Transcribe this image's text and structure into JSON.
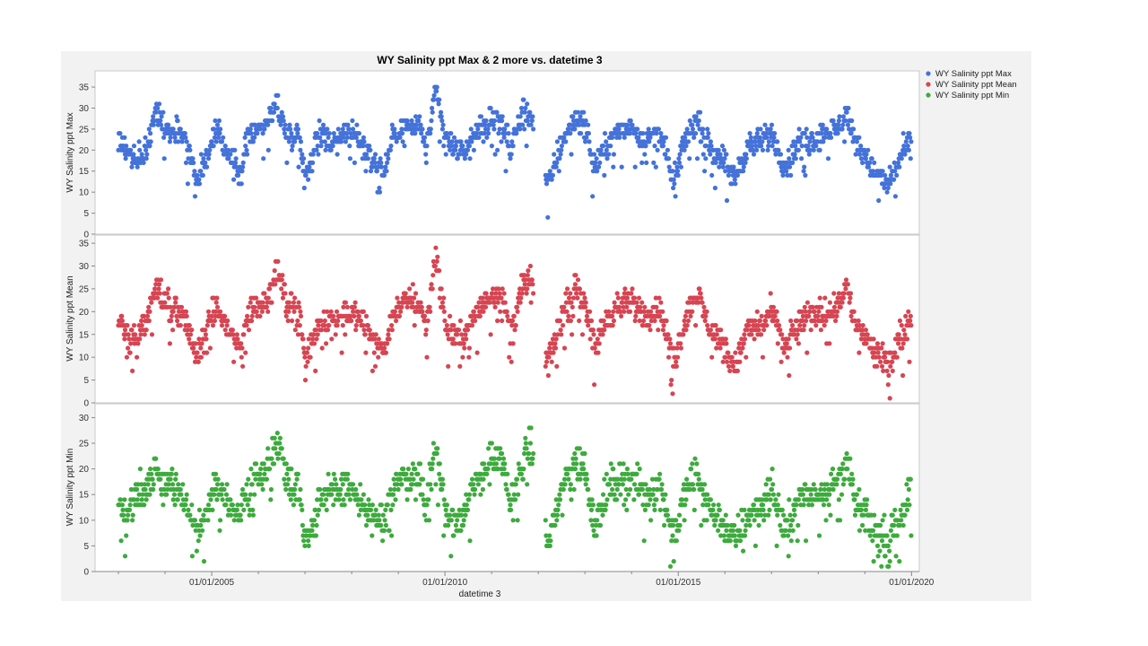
{
  "chart_data": {
    "type": "scatter",
    "title": "WY Salinity ppt Max & 2 more vs. datetime 3",
    "xlabel": "datetime 3",
    "x_ticks": [
      "01/01/2005",
      "01/01/2010",
      "01/01/2015",
      "01/01/2020"
    ],
    "xlim": [
      "2002-07-01",
      "2020-03-01"
    ],
    "legend_position": "right",
    "grid": false,
    "series": [
      {
        "name": "WY Salinity ppt Max",
        "ylabel": "WY Salinity ppt Max",
        "color": "#4472D9",
        "ylim": [
          0,
          38
        ],
        "yticks": [
          0,
          5,
          10,
          15,
          20,
          25,
          30,
          35
        ],
        "anchors": [
          [
            2003.0,
            23
          ],
          [
            2003.2,
            20
          ],
          [
            2003.4,
            17
          ],
          [
            2003.6,
            20
          ],
          [
            2003.8,
            29
          ],
          [
            2004.1,
            25
          ],
          [
            2004.4,
            24
          ],
          [
            2004.7,
            13
          ],
          [
            2004.9,
            19
          ],
          [
            2005.1,
            24
          ],
          [
            2005.3,
            21
          ],
          [
            2005.6,
            14
          ],
          [
            2005.8,
            24
          ],
          [
            2006.2,
            27
          ],
          [
            2006.4,
            31
          ],
          [
            2006.6,
            24
          ],
          [
            2006.9,
            23
          ],
          [
            2007.0,
            13
          ],
          [
            2007.3,
            24
          ],
          [
            2007.6,
            22
          ],
          [
            2007.9,
            25
          ],
          [
            2008.2,
            22
          ],
          [
            2008.5,
            17
          ],
          [
            2008.7,
            15
          ],
          [
            2008.9,
            24
          ],
          [
            2009.3,
            26
          ],
          [
            2009.5,
            25
          ],
          [
            2009.6,
            20
          ],
          [
            2009.8,
            34
          ],
          [
            2010.0,
            23
          ],
          [
            2010.2,
            21
          ],
          [
            2010.4,
            19
          ],
          [
            2010.6,
            23
          ],
          [
            2010.8,
            26
          ],
          [
            2011.0,
            26
          ],
          [
            2011.2,
            27
          ],
          [
            2011.4,
            20
          ],
          [
            2011.7,
            30
          ],
          [
            2011.85,
            28
          ],
          [
            2012.2,
            11
          ],
          [
            2012.5,
            22
          ],
          [
            2012.8,
            28
          ],
          [
            2013.0,
            26
          ],
          [
            2013.2,
            16
          ],
          [
            2013.5,
            22
          ],
          [
            2013.7,
            24
          ],
          [
            2014.0,
            26
          ],
          [
            2014.3,
            22
          ],
          [
            2014.6,
            25
          ],
          [
            2014.9,
            12
          ],
          [
            2015.2,
            24
          ],
          [
            2015.4,
            27
          ],
          [
            2015.7,
            20
          ],
          [
            2015.9,
            19
          ],
          [
            2016.2,
            13
          ],
          [
            2016.5,
            21
          ],
          [
            2016.8,
            22
          ],
          [
            2017.0,
            24
          ],
          [
            2017.3,
            16
          ],
          [
            2017.6,
            22
          ],
          [
            2017.8,
            22
          ],
          [
            2018.1,
            24
          ],
          [
            2018.4,
            25
          ],
          [
            2018.6,
            29
          ],
          [
            2018.8,
            22
          ],
          [
            2019.0,
            19
          ],
          [
            2019.3,
            13
          ],
          [
            2019.5,
            12
          ],
          [
            2019.8,
            19
          ],
          [
            2020.0,
            22
          ]
        ]
      },
      {
        "name": "WY Salinity ppt Mean",
        "ylabel": "WY Salinity ppt Mean",
        "color": "#D64552",
        "ylim": [
          0,
          36
        ],
        "yticks": [
          0,
          5,
          10,
          15,
          20,
          25,
          30,
          35
        ],
        "anchors": [
          [
            2003.0,
            18
          ],
          [
            2003.2,
            14
          ],
          [
            2003.4,
            14
          ],
          [
            2003.6,
            18
          ],
          [
            2003.8,
            25
          ],
          [
            2004.1,
            21
          ],
          [
            2004.4,
            19
          ],
          [
            2004.7,
            10
          ],
          [
            2004.9,
            16
          ],
          [
            2005.1,
            21
          ],
          [
            2005.3,
            17
          ],
          [
            2005.6,
            12
          ],
          [
            2005.8,
            20
          ],
          [
            2006.2,
            23
          ],
          [
            2006.4,
            29
          ],
          [
            2006.6,
            22
          ],
          [
            2006.9,
            20
          ],
          [
            2007.0,
            8
          ],
          [
            2007.3,
            18
          ],
          [
            2007.6,
            18
          ],
          [
            2007.9,
            20
          ],
          [
            2008.2,
            18
          ],
          [
            2008.5,
            14
          ],
          [
            2008.7,
            11
          ],
          [
            2008.9,
            20
          ],
          [
            2009.3,
            23
          ],
          [
            2009.5,
            21
          ],
          [
            2009.6,
            16
          ],
          [
            2009.8,
            33
          ],
          [
            2010.0,
            17
          ],
          [
            2010.2,
            15
          ],
          [
            2010.4,
            14
          ],
          [
            2010.6,
            18
          ],
          [
            2010.8,
            22
          ],
          [
            2011.0,
            24
          ],
          [
            2011.2,
            24
          ],
          [
            2011.4,
            16
          ],
          [
            2011.7,
            26
          ],
          [
            2011.85,
            27
          ],
          [
            2012.2,
            8
          ],
          [
            2012.5,
            19
          ],
          [
            2012.8,
            25
          ],
          [
            2013.0,
            23
          ],
          [
            2013.2,
            12
          ],
          [
            2013.5,
            19
          ],
          [
            2013.7,
            21
          ],
          [
            2014.0,
            22
          ],
          [
            2014.3,
            19
          ],
          [
            2014.6,
            21
          ],
          [
            2014.9,
            9
          ],
          [
            2015.2,
            20
          ],
          [
            2015.4,
            24
          ],
          [
            2015.7,
            16
          ],
          [
            2015.9,
            14
          ],
          [
            2016.2,
            8
          ],
          [
            2016.5,
            16
          ],
          [
            2016.8,
            17
          ],
          [
            2017.0,
            20
          ],
          [
            2017.3,
            12
          ],
          [
            2017.6,
            18
          ],
          [
            2017.8,
            19
          ],
          [
            2018.1,
            20
          ],
          [
            2018.4,
            21
          ],
          [
            2018.6,
            26
          ],
          [
            2018.8,
            17
          ],
          [
            2019.0,
            15
          ],
          [
            2019.3,
            10
          ],
          [
            2019.5,
            9
          ],
          [
            2019.8,
            15
          ],
          [
            2020.0,
            19
          ]
        ]
      },
      {
        "name": "WY Salinity ppt Min",
        "ylabel": "WY Salinity ppt Min",
        "color": "#3DAA3D",
        "ylim": [
          0,
          32
        ],
        "yticks": [
          0,
          5,
          10,
          15,
          20,
          25,
          30
        ],
        "anchors": [
          [
            2003.0,
            14
          ],
          [
            2003.2,
            11
          ],
          [
            2003.4,
            15
          ],
          [
            2003.6,
            16
          ],
          [
            2003.8,
            20
          ],
          [
            2004.1,
            17
          ],
          [
            2004.4,
            14
          ],
          [
            2004.7,
            7
          ],
          [
            2004.9,
            13
          ],
          [
            2005.1,
            18
          ],
          [
            2005.3,
            14
          ],
          [
            2005.6,
            10
          ],
          [
            2005.8,
            17
          ],
          [
            2006.2,
            20
          ],
          [
            2006.4,
            26
          ],
          [
            2006.6,
            19
          ],
          [
            2006.9,
            16
          ],
          [
            2007.0,
            5
          ],
          [
            2007.3,
            14
          ],
          [
            2007.6,
            15
          ],
          [
            2007.9,
            17
          ],
          [
            2008.2,
            13
          ],
          [
            2008.5,
            10
          ],
          [
            2008.7,
            9
          ],
          [
            2008.9,
            17
          ],
          [
            2009.3,
            19
          ],
          [
            2009.5,
            18
          ],
          [
            2009.6,
            12
          ],
          [
            2009.8,
            25
          ],
          [
            2010.0,
            12
          ],
          [
            2010.2,
            10
          ],
          [
            2010.4,
            11
          ],
          [
            2010.6,
            16
          ],
          [
            2010.8,
            19
          ],
          [
            2011.0,
            22
          ],
          [
            2011.2,
            22
          ],
          [
            2011.4,
            13
          ],
          [
            2011.7,
            22
          ],
          [
            2011.85,
            24
          ],
          [
            2012.2,
            5
          ],
          [
            2012.5,
            16
          ],
          [
            2012.8,
            22
          ],
          [
            2013.0,
            20
          ],
          [
            2013.2,
            9
          ],
          [
            2013.5,
            16
          ],
          [
            2013.7,
            18
          ],
          [
            2014.0,
            18
          ],
          [
            2014.3,
            15
          ],
          [
            2014.6,
            17
          ],
          [
            2014.9,
            7
          ],
          [
            2015.2,
            16
          ],
          [
            2015.4,
            19
          ],
          [
            2015.7,
            12
          ],
          [
            2015.9,
            10
          ],
          [
            2016.2,
            6
          ],
          [
            2016.5,
            11
          ],
          [
            2016.8,
            13
          ],
          [
            2017.0,
            16
          ],
          [
            2017.3,
            8
          ],
          [
            2017.6,
            14
          ],
          [
            2017.8,
            15
          ],
          [
            2018.1,
            16
          ],
          [
            2018.4,
            17
          ],
          [
            2018.6,
            22
          ],
          [
            2018.8,
            13
          ],
          [
            2019.0,
            11
          ],
          [
            2019.3,
            7
          ],
          [
            2019.5,
            6
          ],
          [
            2019.8,
            12
          ],
          [
            2020.0,
            16
          ]
        ]
      }
    ]
  }
}
